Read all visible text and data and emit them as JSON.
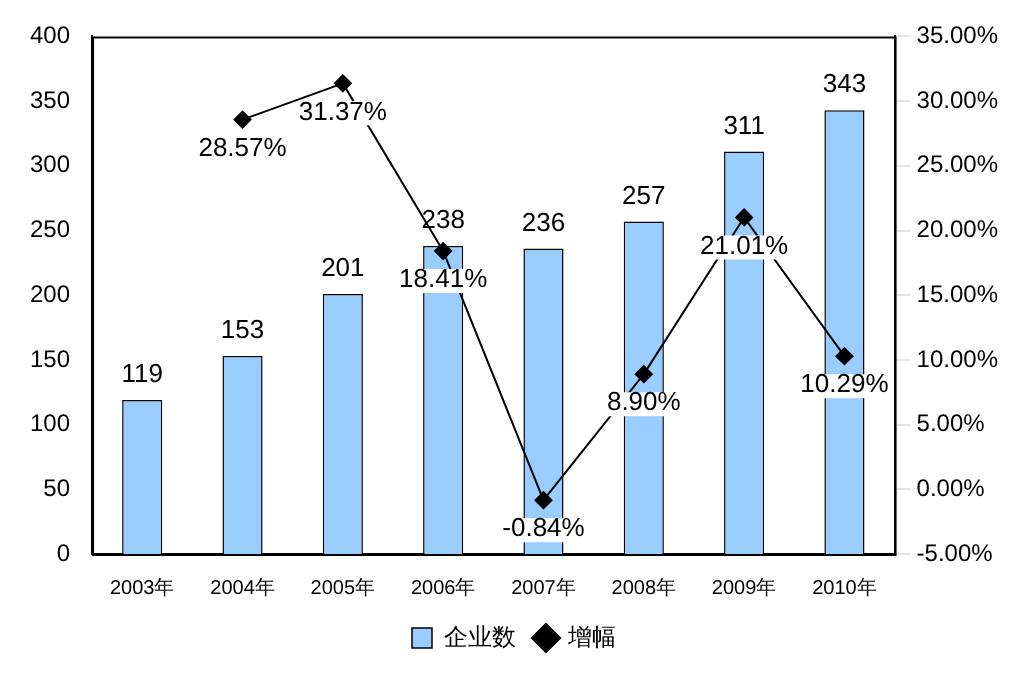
{
  "chart_data": {
    "type": "bar",
    "categories": [
      "2003年",
      "2004年",
      "2005年",
      "2006年",
      "2007年",
      "2008年",
      "2009年",
      "2010年"
    ],
    "series": [
      {
        "name": "企业数",
        "type": "bar",
        "color": "#99ccff",
        "values": [
          119,
          153,
          201,
          238,
          236,
          257,
          311,
          343
        ],
        "value_labels": [
          "119",
          "153",
          "201",
          "238",
          "236",
          "257",
          "311",
          "343"
        ]
      },
      {
        "name": "增幅",
        "type": "line",
        "axis": "y2",
        "color": "#000000",
        "marker": "diamond",
        "values": [
          null,
          28.57,
          31.37,
          18.41,
          -0.84,
          8.9,
          21.01,
          10.29
        ],
        "value_labels": [
          null,
          "28.57%",
          "31.37%",
          "18.41%",
          "-0.84%",
          "8.90%",
          "21.01%",
          "10.29%"
        ]
      }
    ],
    "ylim": [
      0,
      400
    ],
    "yticks": [
      0,
      50,
      100,
      150,
      200,
      250,
      300,
      350,
      400
    ],
    "y2lim": [
      -5,
      35
    ],
    "y2ticks": [
      {
        "value": -5,
        "label": "-5.00%"
      },
      {
        "value": 0,
        "label": "0.00%"
      },
      {
        "value": 5,
        "label": "5.00%"
      },
      {
        "value": 10,
        "label": "10.00%"
      },
      {
        "value": 15,
        "label": "15.00%"
      },
      {
        "value": 20,
        "label": "20.00%"
      },
      {
        "value": 25,
        "label": "25.00%"
      },
      {
        "value": 30,
        "label": "30.00%"
      },
      {
        "value": 35,
        "label": "35.00%"
      }
    ],
    "grid": false,
    "legend": "bottom"
  }
}
